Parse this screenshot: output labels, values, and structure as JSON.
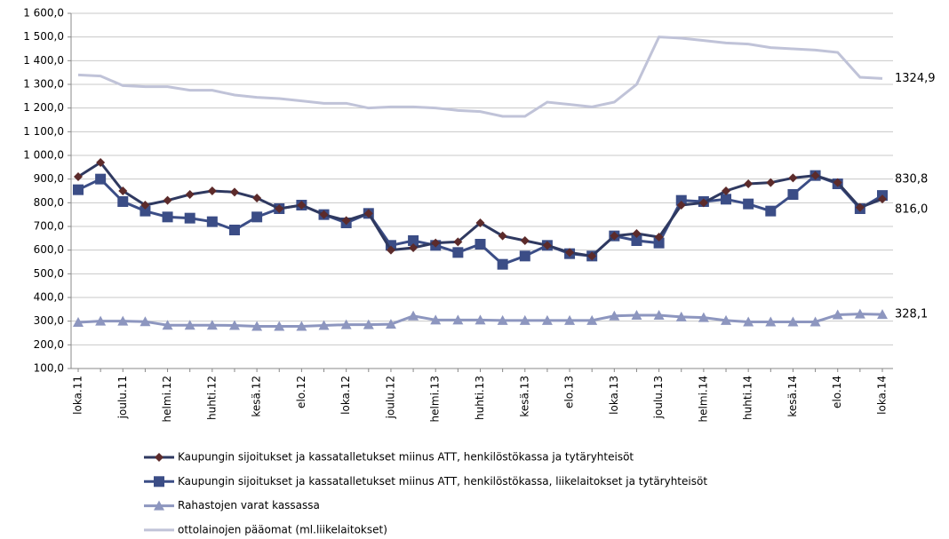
{
  "chart_data": {
    "type": "line",
    "categories": [
      "loka.11",
      null,
      "joulu.11",
      null,
      "helmi.12",
      null,
      "huhti.12",
      null,
      "kesä.12",
      null,
      "elo.12",
      null,
      "loka.12",
      null,
      "joulu.12",
      null,
      "helmi.13",
      null,
      "huhti.13",
      null,
      "kesä.13",
      null,
      "elo.13",
      null,
      "loka.13",
      null,
      "joulu.13",
      null,
      "helmi.14",
      null,
      "huhti.14",
      null,
      "kesä.14",
      null,
      "elo.14",
      null,
      "loka.14"
    ],
    "series": [
      {
        "name": "Kaupungin sijoitukset ja kassatalletukset miinus ATT, henkilöstökassa ja tytäryhteisöt",
        "color": "#2f3960",
        "marker": "diamond",
        "marker_color": "#5c2b2b",
        "values": [
          910,
          970,
          850,
          790,
          810,
          835,
          850,
          845,
          820,
          775,
          790,
          750,
          725,
          755,
          600,
          610,
          630,
          635,
          715,
          660,
          640,
          620,
          590,
          575,
          660,
          670,
          655,
          790,
          800,
          850,
          880,
          885,
          905,
          915,
          885,
          780,
          816.0
        ],
        "value_labels": [
          null,
          null,
          null,
          null,
          null,
          null,
          null,
          null,
          null,
          null,
          null,
          null,
          null,
          null,
          null,
          null,
          null,
          null,
          null,
          null,
          null,
          null,
          null,
          null,
          null,
          null,
          null,
          null,
          null,
          null,
          null,
          null,
          null,
          null,
          null,
          null,
          "816,0"
        ]
      },
      {
        "name": "Kaupungin sijoitukset ja kassatalletukset miinus ATT, henkilöstökassa, liikelaitokset ja tytäryhteisöt",
        "color": "#3b4d86",
        "marker": "square",
        "marker_color": "#3b4d86",
        "values": [
          855,
          900,
          805,
          765,
          740,
          735,
          720,
          685,
          740,
          775,
          790,
          750,
          715,
          755,
          620,
          640,
          620,
          590,
          625,
          540,
          575,
          620,
          585,
          575,
          660,
          640,
          630,
          810,
          805,
          815,
          795,
          765,
          835,
          915,
          880,
          775,
          830.8
        ],
        "value_labels": [
          null,
          null,
          null,
          null,
          null,
          null,
          null,
          null,
          null,
          null,
          null,
          null,
          null,
          null,
          null,
          null,
          null,
          null,
          null,
          null,
          null,
          null,
          null,
          null,
          null,
          null,
          null,
          null,
          null,
          null,
          null,
          null,
          null,
          null,
          null,
          null,
          "830,8"
        ]
      },
      {
        "name": "Rahastojen varat kassassa",
        "color": "#8d96bf",
        "marker": "triangle",
        "marker_color": "#8d96bf",
        "values": [
          295,
          300,
          300,
          298,
          283,
          283,
          283,
          282,
          278,
          278,
          278,
          282,
          285,
          285,
          287,
          322,
          305,
          305,
          305,
          303,
          303,
          303,
          303,
          303,
          322,
          325,
          325,
          318,
          315,
          303,
          297,
          297,
          297,
          297,
          327,
          330,
          328.1
        ],
        "value_labels": [
          null,
          null,
          null,
          null,
          null,
          null,
          null,
          null,
          null,
          null,
          null,
          null,
          null,
          null,
          null,
          null,
          null,
          null,
          null,
          null,
          null,
          null,
          null,
          null,
          null,
          null,
          null,
          null,
          null,
          null,
          null,
          null,
          null,
          null,
          null,
          null,
          "328,1"
        ]
      },
      {
        "name": "ottolainojen pääomat (ml.liikelaitokset)",
        "color": "#c0c3d8",
        "marker": null,
        "marker_color": null,
        "values": [
          1340,
          1335,
          1295,
          1290,
          1290,
          1275,
          1275,
          1255,
          1245,
          1240,
          1230,
          1220,
          1220,
          1200,
          1205,
          1205,
          1200,
          1190,
          1185,
          1165,
          1165,
          1225,
          1215,
          1205,
          1225,
          1300,
          1500,
          1495,
          1485,
          1475,
          1470,
          1455,
          1450,
          1445,
          1435,
          1330,
          1324.9
        ],
        "value_labels": [
          null,
          null,
          null,
          null,
          null,
          null,
          null,
          null,
          null,
          null,
          null,
          null,
          null,
          null,
          null,
          null,
          null,
          null,
          null,
          null,
          null,
          null,
          null,
          null,
          null,
          null,
          null,
          null,
          null,
          null,
          null,
          null,
          null,
          null,
          null,
          null,
          "1324,9"
        ]
      }
    ],
    "ylim": [
      100,
      1600
    ],
    "yticks": [
      {
        "value": 100,
        "label": "100,0"
      },
      {
        "value": 200,
        "label": "200,0"
      },
      {
        "value": 300,
        "label": "300,0"
      },
      {
        "value": 400,
        "label": "400,0"
      },
      {
        "value": 500,
        "label": "500,0"
      },
      {
        "value": 600,
        "label": "600,0"
      },
      {
        "value": 700,
        "label": "700,0"
      },
      {
        "value": 800,
        "label": "800,0"
      },
      {
        "value": 900,
        "label": "900,0"
      },
      {
        "value": 1000,
        "label": "1 000,0"
      },
      {
        "value": 1100,
        "label": "1 100,0"
      },
      {
        "value": 1200,
        "label": "1 200,0"
      },
      {
        "value": 1300,
        "label": "1 300,0"
      },
      {
        "value": 1400,
        "label": "1 400,0"
      },
      {
        "value": 1500,
        "label": "1 500,0"
      },
      {
        "value": 1600,
        "label": "1 600,0"
      }
    ],
    "grid": true
  }
}
